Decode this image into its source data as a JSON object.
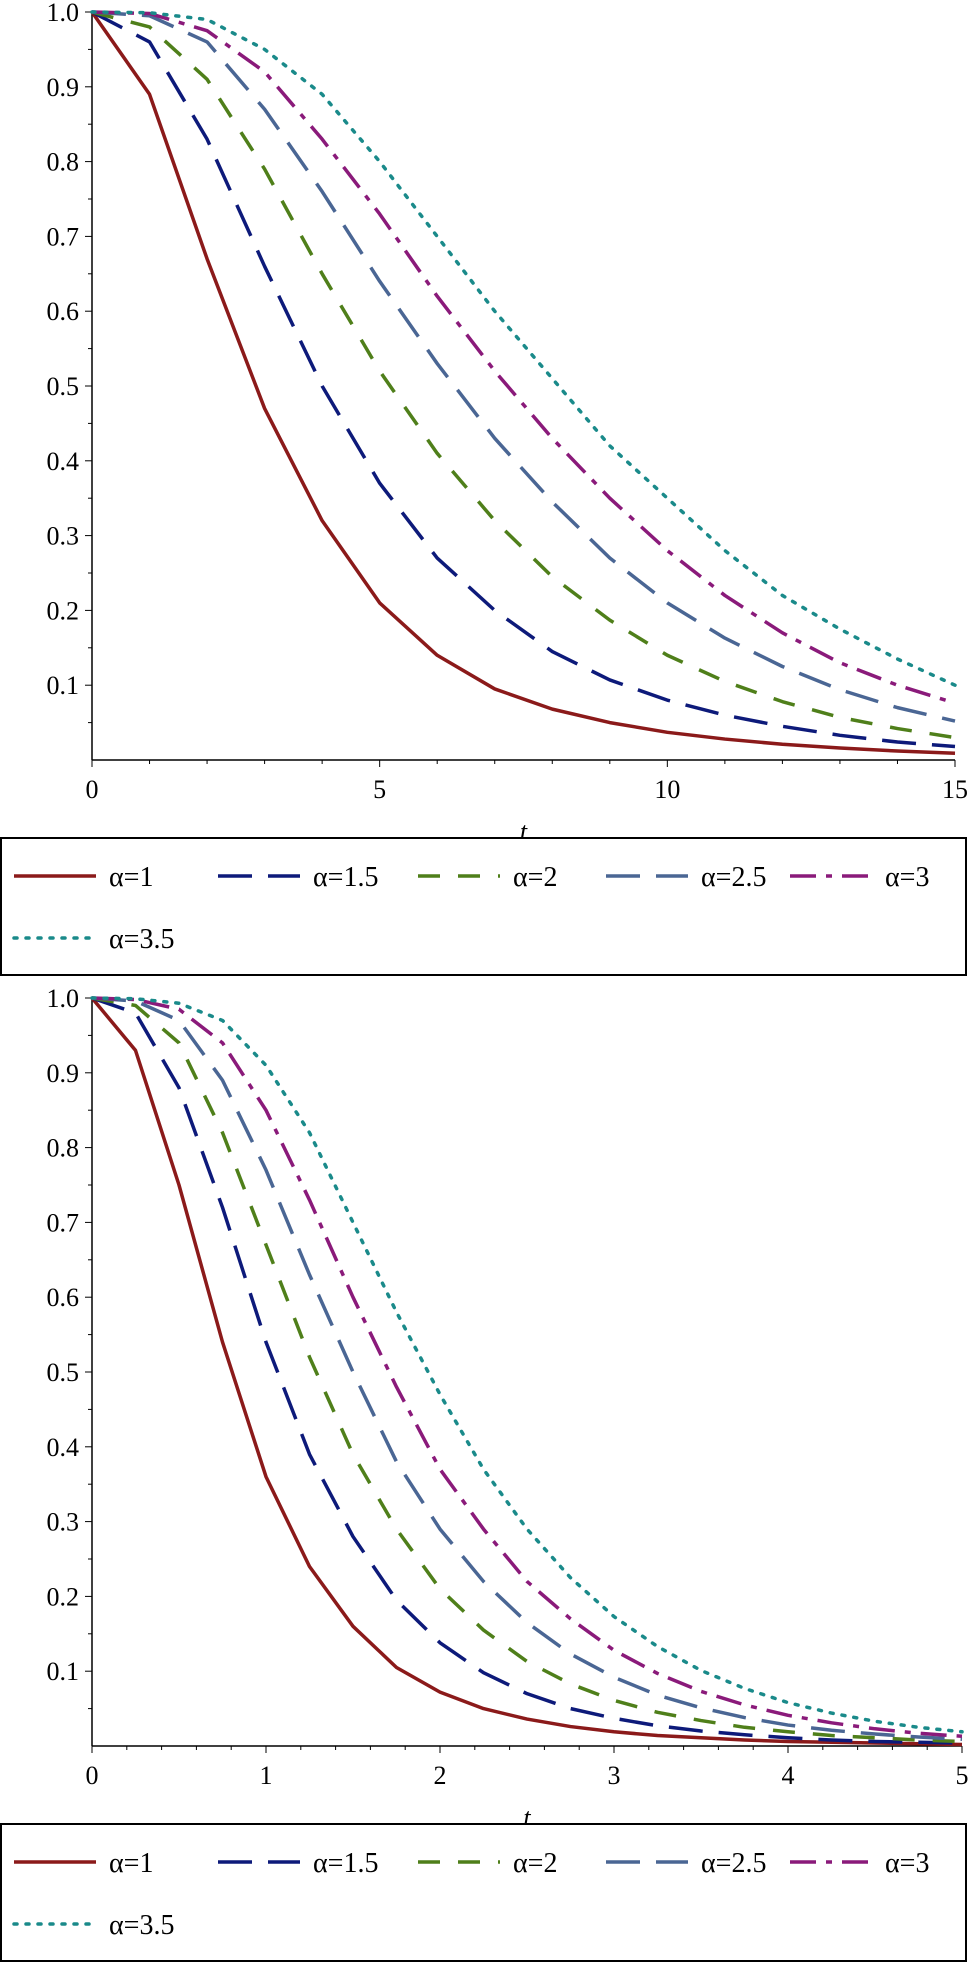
{
  "chart_data": [
    {
      "type": "line",
      "xlabel": "t",
      "ylabel": "",
      "xlim": [
        0,
        15
      ],
      "ylim": [
        0,
        1.0
      ],
      "x_ticks": [
        "0",
        "5",
        "10",
        "15"
      ],
      "y_ticks": [
        "0.1",
        "0.2",
        "0.3",
        "0.4",
        "0.5",
        "0.6",
        "0.7",
        "0.8",
        "0.9",
        "1.0"
      ],
      "legend_position": "bottom",
      "grid": false,
      "x": [
        0,
        1,
        2,
        3,
        4,
        5,
        6,
        7,
        8,
        9,
        10,
        11,
        12,
        13,
        14,
        15
      ],
      "series": [
        {
          "name": "α=1",
          "color": "#8b1a1a",
          "dash": "solid",
          "values": [
            1.0,
            0.89,
            0.67,
            0.47,
            0.32,
            0.21,
            0.14,
            0.095,
            0.068,
            0.05,
            0.037,
            0.028,
            0.021,
            0.016,
            0.012,
            0.009
          ]
        },
        {
          "name": "α=1.5",
          "color": "#0d1a7a",
          "dash": "longdash",
          "values": [
            1.0,
            0.96,
            0.83,
            0.66,
            0.5,
            0.37,
            0.27,
            0.2,
            0.145,
            0.107,
            0.08,
            0.06,
            0.045,
            0.033,
            0.024,
            0.018
          ]
        },
        {
          "name": "α=2",
          "color": "#4f7f1a",
          "dash": "dash",
          "values": [
            1.0,
            0.98,
            0.91,
            0.79,
            0.65,
            0.52,
            0.41,
            0.32,
            0.245,
            0.187,
            0.14,
            0.105,
            0.078,
            0.057,
            0.042,
            0.03
          ]
        },
        {
          "name": "α=2.5",
          "color": "#4a6694",
          "dash": "longdash",
          "values": [
            1.0,
            0.995,
            0.96,
            0.87,
            0.76,
            0.64,
            0.53,
            0.43,
            0.345,
            0.27,
            0.21,
            0.163,
            0.125,
            0.094,
            0.07,
            0.052
          ]
        },
        {
          "name": "α=3",
          "color": "#8a1a7a",
          "dash": "dashdot",
          "values": [
            1.0,
            0.998,
            0.975,
            0.92,
            0.83,
            0.73,
            0.62,
            0.52,
            0.43,
            0.35,
            0.28,
            0.22,
            0.17,
            0.13,
            0.1,
            0.076
          ]
        },
        {
          "name": "α=3.5",
          "color": "#1a8a8a",
          "dash": "dot",
          "values": [
            1.0,
            0.999,
            0.99,
            0.95,
            0.89,
            0.8,
            0.7,
            0.6,
            0.51,
            0.42,
            0.35,
            0.28,
            0.22,
            0.175,
            0.135,
            0.1
          ]
        }
      ]
    },
    {
      "type": "line",
      "xlabel": "t",
      "ylabel": "",
      "xlim": [
        0,
        5
      ],
      "ylim": [
        0,
        1.0
      ],
      "x_ticks": [
        "0",
        "1",
        "2",
        "3",
        "4",
        "5"
      ],
      "y_ticks": [
        "0.1",
        "0.2",
        "0.3",
        "0.4",
        "0.5",
        "0.6",
        "0.7",
        "0.8",
        "0.9",
        "1.0"
      ],
      "legend_position": "bottom",
      "grid": false,
      "x": [
        0,
        0.25,
        0.5,
        0.75,
        1.0,
        1.25,
        1.5,
        1.75,
        2.0,
        2.25,
        2.5,
        2.75,
        3.0,
        3.25,
        3.5,
        3.75,
        4.0,
        4.25,
        4.5,
        4.75,
        5.0
      ],
      "series": [
        {
          "name": "α=1",
          "color": "#8b1a1a",
          "dash": "solid",
          "values": [
            1.0,
            0.93,
            0.75,
            0.54,
            0.36,
            0.24,
            0.16,
            0.105,
            0.072,
            0.05,
            0.036,
            0.026,
            0.019,
            0.014,
            0.011,
            0.008,
            0.006,
            0.005,
            0.004,
            0.003,
            0.002
          ]
        },
        {
          "name": "α=1.5",
          "color": "#0d1a7a",
          "dash": "longdash",
          "values": [
            1.0,
            0.98,
            0.88,
            0.72,
            0.54,
            0.39,
            0.28,
            0.195,
            0.138,
            0.098,
            0.07,
            0.05,
            0.037,
            0.027,
            0.02,
            0.015,
            0.011,
            0.008,
            0.006,
            0.005,
            0.004
          ]
        },
        {
          "name": "α=2",
          "color": "#4f7f1a",
          "dash": "dash",
          "values": [
            1.0,
            0.99,
            0.94,
            0.82,
            0.67,
            0.52,
            0.39,
            0.29,
            0.21,
            0.155,
            0.113,
            0.083,
            0.061,
            0.045,
            0.034,
            0.025,
            0.019,
            0.014,
            0.011,
            0.008,
            0.006
          ]
        },
        {
          "name": "α=2.5",
          "color": "#4a6694",
          "dash": "longdash",
          "values": [
            1.0,
            0.996,
            0.97,
            0.89,
            0.77,
            0.63,
            0.5,
            0.38,
            0.29,
            0.22,
            0.165,
            0.123,
            0.092,
            0.068,
            0.051,
            0.038,
            0.028,
            0.021,
            0.016,
            0.012,
            0.009
          ]
        },
        {
          "name": "α=3",
          "color": "#8a1a7a",
          "dash": "dashdot",
          "values": [
            1.0,
            0.998,
            0.985,
            0.94,
            0.85,
            0.73,
            0.6,
            0.48,
            0.37,
            0.29,
            0.22,
            0.17,
            0.128,
            0.097,
            0.073,
            0.055,
            0.041,
            0.031,
            0.023,
            0.017,
            0.013
          ]
        },
        {
          "name": "α=3.5",
          "color": "#1a8a8a",
          "dash": "dot",
          "values": [
            1.0,
            0.999,
            0.993,
            0.97,
            0.91,
            0.82,
            0.7,
            0.58,
            0.47,
            0.37,
            0.29,
            0.225,
            0.173,
            0.133,
            0.101,
            0.077,
            0.058,
            0.044,
            0.033,
            0.025,
            0.019
          ]
        }
      ]
    }
  ]
}
